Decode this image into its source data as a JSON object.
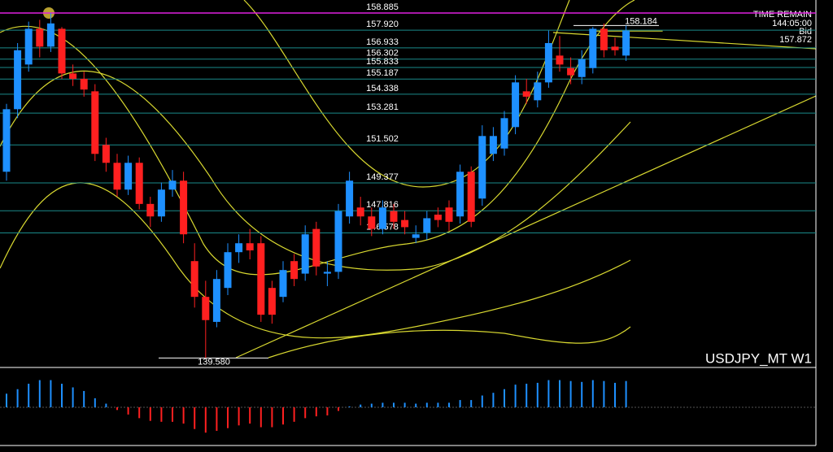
{
  "chart_data": {
    "type": "candlestick",
    "symbol": "USDJPY_MT W1",
    "ylim": [
      139.05,
      159.61
    ],
    "open": [
      150.0,
      153.5,
      156.0,
      158.0,
      157.0,
      158.0,
      155.5,
      155.2,
      154.5,
      151.5,
      150.5,
      149.0,
      150.5,
      148.2,
      147.5,
      149.0,
      149.5,
      145.0,
      143.0,
      141.6,
      143.5,
      145.5,
      146.0,
      146.0,
      143.5,
      143.0,
      145.0,
      144.3,
      146.8,
      144.3,
      144.4,
      147.5,
      148.0,
      147.5,
      146.8,
      147.8,
      147.3,
      146.3,
      146.6,
      147.6,
      148.0,
      147.5,
      150.0,
      148.5,
      151.0,
      151.3,
      152.5,
      154.5,
      154.0,
      155.0,
      156.5,
      155.8,
      155.3,
      155.8,
      158.0,
      157.0,
      156.5
    ],
    "high": [
      153.8,
      157.2,
      158.4,
      158.5,
      158.885,
      158.1,
      156.0,
      155.6,
      154.9,
      151.9,
      151.0,
      150.9,
      150.8,
      148.6,
      149.4,
      150.1,
      150.0,
      146.0,
      143.9,
      144.5,
      146.0,
      146.5,
      146.8,
      146.4,
      143.9,
      145.0,
      145.4,
      147.0,
      147.2,
      145.0,
      148.2,
      150.0,
      148.6,
      148.0,
      148.4,
      148.2,
      147.8,
      147.0,
      147.8,
      148.0,
      148.4,
      150.4,
      150.3,
      152.6,
      152.5,
      153.4,
      155.4,
      155.2,
      155.6,
      157.9,
      157.6,
      156.4,
      156.8,
      158.1,
      158.3,
      157.5,
      158.184
    ],
    "low": [
      149.5,
      153.0,
      155.6,
      156.4,
      156.7,
      155.2,
      154.8,
      154.2,
      150.6,
      150.0,
      148.6,
      148.7,
      147.9,
      146.9,
      147.2,
      148.6,
      146.0,
      142.4,
      139.58,
      141.3,
      143.1,
      144.9,
      145.1,
      141.6,
      141.5,
      142.7,
      143.6,
      143.9,
      144.2,
      143.6,
      144.0,
      147.1,
      147.0,
      146.4,
      146.5,
      146.8,
      146.5,
      146.0,
      146.2,
      146.9,
      146.7,
      147.1,
      146.9,
      148.1,
      150.6,
      150.9,
      152.1,
      153.8,
      153.6,
      154.7,
      155.6,
      154.9,
      154.9,
      155.5,
      156.4,
      156.5,
      156.2
    ],
    "close": [
      153.5,
      156.8,
      158.0,
      157.0,
      158.3,
      155.5,
      155.2,
      154.6,
      151.0,
      150.5,
      149.0,
      150.5,
      148.2,
      147.5,
      149.0,
      149.5,
      146.5,
      143.0,
      141.7,
      144.0,
      145.5,
      146.0,
      145.6,
      142.0,
      142.0,
      144.5,
      144.0,
      146.5,
      144.7,
      144.4,
      147.8,
      149.5,
      147.5,
      146.8,
      148.0,
      147.2,
      146.9,
      146.5,
      147.4,
      147.3,
      147.2,
      150.0,
      147.2,
      152.0,
      152.0,
      153.0,
      155.0,
      154.2,
      155.0,
      157.2,
      156.0,
      155.4,
      156.3,
      158.0,
      156.8,
      156.8,
      157.9
    ],
    "bull_color": "#1e90ff",
    "bear_color": "#ff2020",
    "levels": [
      {
        "value": 158.885,
        "label": "158.885",
        "color": "#e020e0"
      },
      {
        "value": 157.92,
        "label": "157.920",
        "color": "#1a8a8a"
      },
      {
        "value": 156.933,
        "label": "156.933",
        "color": "#1a8a8a"
      },
      {
        "value": 156.302,
        "label": "156.302",
        "color": "#1a8a8a"
      },
      {
        "value": 155.833,
        "label": "155.833",
        "color": "#1a8a8a"
      },
      {
        "value": 155.187,
        "label": "155.187",
        "color": "#1a8a8a"
      },
      {
        "value": 154.338,
        "label": "154.338",
        "color": "#1a8a8a"
      },
      {
        "value": 153.281,
        "label": "153.281",
        "color": "#1a8a8a"
      },
      {
        "value": 151.502,
        "label": "151.502",
        "color": "#1a8a8a"
      },
      {
        "value": 149.377,
        "label": "149.377",
        "color": "#1a8a8a"
      },
      {
        "value": 147.816,
        "label": "147.816",
        "color": "#1a8a8a"
      },
      {
        "value": 146.578,
        "label": "146.578",
        "color": "#1a8a8a"
      }
    ],
    "high_marker": {
      "value": 158.184,
      "label": "158.184"
    },
    "low_marker": {
      "value": 139.58,
      "label": "139.580"
    },
    "time_remain_label": "TIME REMAIN",
    "time_remain": "144:05:00",
    "bid_label": "Bid",
    "bid": {
      "value": 157.872,
      "label": "157.872"
    },
    "indicator": {
      "ylim": [
        -3.5,
        3.5
      ],
      "values": [
        1.5,
        2.0,
        2.6,
        3.0,
        3.0,
        2.6,
        2.2,
        1.8,
        1.0,
        0.4,
        -0.3,
        -0.8,
        -1.2,
        -1.5,
        -1.6,
        -1.6,
        -1.8,
        -2.4,
        -2.8,
        -2.6,
        -2.3,
        -2.0,
        -1.8,
        -2.2,
        -2.2,
        -1.9,
        -1.6,
        -1.2,
        -1.0,
        -0.9,
        -0.4,
        0.1,
        0.3,
        0.4,
        0.5,
        0.5,
        0.5,
        0.4,
        0.5,
        0.5,
        0.5,
        0.8,
        0.8,
        1.3,
        1.6,
        2.0,
        2.5,
        2.6,
        2.7,
        3.0,
        3.0,
        2.9,
        2.8,
        3.0,
        2.9,
        2.7,
        2.9
      ]
    }
  }
}
